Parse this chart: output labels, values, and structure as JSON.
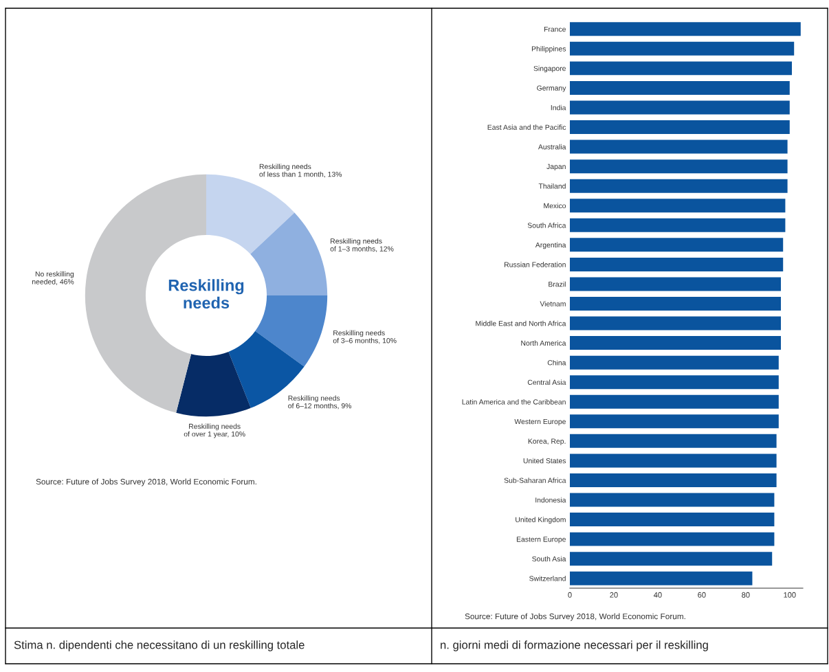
{
  "chart_data": [
    {
      "type": "donut",
      "categories": [
        "Reskilling needs\nof less than 1 month",
        "Reskilling needs\nof 1–3 months",
        "Reskilling needs\nof 3–6 months",
        "Reskilling needs\nof 6–12 months",
        "Reskilling needs\nof over 1 year",
        "No reskilling\nneeded"
      ],
      "values": [
        13,
        12,
        10,
        9,
        10,
        46
      ],
      "value_labels": [
        "13%",
        "12%",
        "10%",
        "9%",
        "10%",
        "46%"
      ],
      "colors": [
        "#c5d5ef",
        "#8fb0e0",
        "#4d86cc",
        "#0b56a4",
        "#062c66",
        "#c8c9cb"
      ],
      "annotations": [
        "Reskilling\nneeds",
        "Source: Future of Jobs Survey 2018, World Economic Forum.",
        "Stima n. dipendenti che necessitano di un reskilling totale"
      ]
    },
    {
      "type": "bar",
      "orientation": "horizontal",
      "color": "#0a549e",
      "categories": [
        "France",
        "Philippines",
        "Singapore",
        "Germany",
        "India",
        "East Asia and the Pacific",
        "Australia",
        "Japan",
        "Thailand",
        "Mexico",
        "South Africa",
        "Argentina",
        "Russian Federation",
        "Brazil",
        "Vietnam",
        "Middle East and North Africa",
        "North America",
        "China",
        "Central Asia",
        "Latin America and the Caribbean",
        "Western Europe",
        "Korea, Rep.",
        "United States",
        "Sub-Saharan Africa",
        "Indonesia",
        "United Kingdom",
        "Eastern Europe",
        "South Asia",
        "Switzerland"
      ],
      "values": [
        105,
        102,
        101,
        100,
        100,
        100,
        99,
        99,
        99,
        98,
        98,
        97,
        97,
        96,
        96,
        96,
        96,
        95,
        95,
        95,
        95,
        94,
        94,
        94,
        93,
        93,
        93,
        92,
        83
      ],
      "xlim": [
        0,
        106
      ],
      "xticks": [
        0,
        20,
        40,
        60,
        80,
        100
      ],
      "grid": false,
      "annotations": [
        "Source: Future of Jobs Survey 2018, World Economic Forum.",
        "n. giorni medi di formazione necessari per il reskilling"
      ]
    }
  ]
}
